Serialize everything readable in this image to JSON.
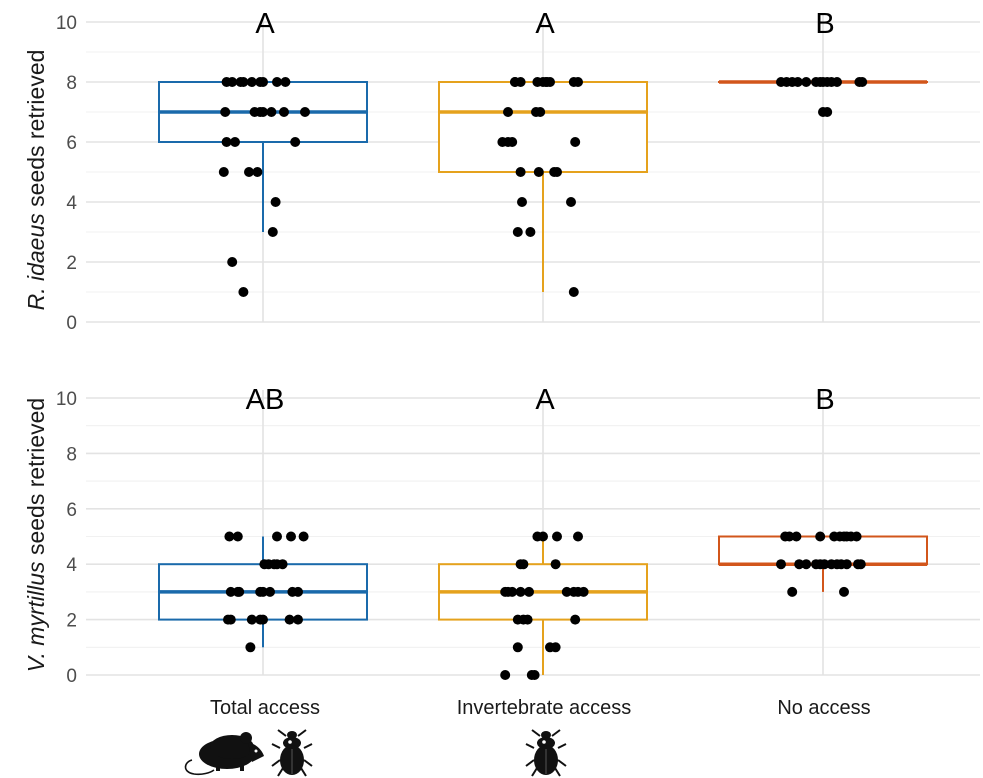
{
  "chart_data": [
    {
      "type": "box",
      "ylabel_italic": "R. idaeus",
      "ylabel_rest": " seeds retrieved",
      "ylim": [
        0,
        10
      ],
      "yticks": [
        0,
        2,
        4,
        6,
        8,
        10
      ],
      "grid": true,
      "categories": [
        "Total access",
        "Invertebrate access",
        "No access"
      ],
      "letters": [
        "A",
        "A",
        "B"
      ],
      "boxes": [
        {
          "min": 3,
          "q1": 6,
          "median": 7,
          "q3": 8,
          "max": 8,
          "color": "#1a6aab"
        },
        {
          "min": 1,
          "q1": 5,
          "median": 7,
          "q3": 8,
          "max": 8,
          "color": "#e5a21d"
        },
        {
          "min": 8,
          "q1": 8,
          "median": 8,
          "q3": 8,
          "max": 8,
          "color": "#d2561b"
        }
      ],
      "points": [
        [
          {
            "j": -0.26,
            "y": 8
          },
          {
            "j": -0.22,
            "y": 8
          },
          {
            "j": -0.16,
            "y": 8
          },
          {
            "j": -0.14,
            "y": 8
          },
          {
            "j": -0.08,
            "y": 8
          },
          {
            "j": -0.02,
            "y": 8
          },
          {
            "j": 0.0,
            "y": 8
          },
          {
            "j": 0.1,
            "y": 8
          },
          {
            "j": 0.16,
            "y": 8
          },
          {
            "j": -0.27,
            "y": 7
          },
          {
            "j": -0.06,
            "y": 7
          },
          {
            "j": -0.02,
            "y": 7
          },
          {
            "j": 0.0,
            "y": 7
          },
          {
            "j": 0.06,
            "y": 7
          },
          {
            "j": 0.15,
            "y": 7
          },
          {
            "j": 0.3,
            "y": 7
          },
          {
            "j": -0.26,
            "y": 6
          },
          {
            "j": -0.2,
            "y": 6
          },
          {
            "j": 0.23,
            "y": 6
          },
          {
            "j": -0.28,
            "y": 5
          },
          {
            "j": -0.1,
            "y": 5
          },
          {
            "j": -0.04,
            "y": 5
          },
          {
            "j": 0.09,
            "y": 4
          },
          {
            "j": 0.07,
            "y": 3
          },
          {
            "j": -0.22,
            "y": 2
          },
          {
            "j": -0.14,
            "y": 1
          }
        ],
        [
          {
            "j": -0.2,
            "y": 8
          },
          {
            "j": -0.2,
            "y": 8
          },
          {
            "j": -0.16,
            "y": 8
          },
          {
            "j": -0.04,
            "y": 8
          },
          {
            "j": 0.0,
            "y": 8
          },
          {
            "j": 0.02,
            "y": 8
          },
          {
            "j": 0.03,
            "y": 8
          },
          {
            "j": 0.05,
            "y": 8
          },
          {
            "j": 0.22,
            "y": 8
          },
          {
            "j": 0.25,
            "y": 8
          },
          {
            "j": -0.25,
            "y": 7
          },
          {
            "j": -0.05,
            "y": 7
          },
          {
            "j": -0.02,
            "y": 7
          },
          {
            "j": -0.29,
            "y": 6
          },
          {
            "j": -0.25,
            "y": 6
          },
          {
            "j": -0.22,
            "y": 6
          },
          {
            "j": 0.23,
            "y": 6
          },
          {
            "j": -0.16,
            "y": 5
          },
          {
            "j": -0.03,
            "y": 5
          },
          {
            "j": 0.08,
            "y": 5
          },
          {
            "j": 0.1,
            "y": 5
          },
          {
            "j": -0.15,
            "y": 4
          },
          {
            "j": 0.2,
            "y": 4
          },
          {
            "j": -0.18,
            "y": 3
          },
          {
            "j": -0.09,
            "y": 3
          },
          {
            "j": 0.22,
            "y": 1
          }
        ],
        [
          {
            "j": -0.3,
            "y": 8
          },
          {
            "j": -0.26,
            "y": 8
          },
          {
            "j": -0.22,
            "y": 8
          },
          {
            "j": -0.18,
            "y": 8
          },
          {
            "j": -0.12,
            "y": 8
          },
          {
            "j": -0.05,
            "y": 8
          },
          {
            "j": -0.02,
            "y": 8
          },
          {
            "j": 0.0,
            "y": 8
          },
          {
            "j": 0.03,
            "y": 8
          },
          {
            "j": 0.06,
            "y": 8
          },
          {
            "j": 0.1,
            "y": 8
          },
          {
            "j": 0.26,
            "y": 8
          },
          {
            "j": 0.28,
            "y": 8
          },
          {
            "j": 0.0,
            "y": 7
          },
          {
            "j": 0.03,
            "y": 7
          }
        ]
      ]
    },
    {
      "type": "box",
      "ylabel_italic": "V. myrtillus",
      "ylabel_rest": " seeds retrieved",
      "ylim": [
        0,
        10
      ],
      "yticks": [
        0,
        2,
        4,
        6,
        8,
        10
      ],
      "grid": true,
      "categories": [
        "Total access",
        "Invertebrate access",
        "No access"
      ],
      "letters": [
        "AB",
        "A",
        "B"
      ],
      "boxes": [
        {
          "min": 1,
          "q1": 2,
          "median": 3,
          "q3": 4,
          "max": 5,
          "color": "#1a6aab"
        },
        {
          "min": 0,
          "q1": 2,
          "median": 3,
          "q3": 4,
          "max": 5,
          "color": "#e5a21d"
        },
        {
          "min": 3,
          "q1": 4,
          "median": 4,
          "q3": 5,
          "max": 5,
          "color": "#d2561b"
        }
      ],
      "points": [
        [
          {
            "j": -0.24,
            "y": 5
          },
          {
            "j": -0.18,
            "y": 5
          },
          {
            "j": 0.1,
            "y": 5
          },
          {
            "j": 0.2,
            "y": 5
          },
          {
            "j": 0.29,
            "y": 5
          },
          {
            "j": 0.01,
            "y": 4
          },
          {
            "j": 0.04,
            "y": 4
          },
          {
            "j": 0.08,
            "y": 4
          },
          {
            "j": 0.1,
            "y": 4
          },
          {
            "j": 0.14,
            "y": 4
          },
          {
            "j": -0.23,
            "y": 3
          },
          {
            "j": -0.18,
            "y": 3
          },
          {
            "j": -0.17,
            "y": 3
          },
          {
            "j": -0.02,
            "y": 3
          },
          {
            "j": 0.0,
            "y": 3
          },
          {
            "j": 0.05,
            "y": 3
          },
          {
            "j": 0.21,
            "y": 3
          },
          {
            "j": 0.25,
            "y": 3
          },
          {
            "j": -0.25,
            "y": 2
          },
          {
            "j": -0.23,
            "y": 2
          },
          {
            "j": -0.08,
            "y": 2
          },
          {
            "j": -0.02,
            "y": 2
          },
          {
            "j": 0.0,
            "y": 2
          },
          {
            "j": 0.19,
            "y": 2
          },
          {
            "j": 0.25,
            "y": 2
          },
          {
            "j": -0.09,
            "y": 1
          }
        ],
        [
          {
            "j": -0.04,
            "y": 5
          },
          {
            "j": 0.0,
            "y": 5
          },
          {
            "j": 0.1,
            "y": 5
          },
          {
            "j": 0.25,
            "y": 5
          },
          {
            "j": -0.16,
            "y": 4
          },
          {
            "j": -0.14,
            "y": 4
          },
          {
            "j": 0.09,
            "y": 4
          },
          {
            "j": -0.27,
            "y": 3
          },
          {
            "j": -0.25,
            "y": 3
          },
          {
            "j": -0.22,
            "y": 3
          },
          {
            "j": -0.16,
            "y": 3
          },
          {
            "j": -0.1,
            "y": 3
          },
          {
            "j": 0.17,
            "y": 3
          },
          {
            "j": 0.22,
            "y": 3
          },
          {
            "j": 0.25,
            "y": 3
          },
          {
            "j": 0.29,
            "y": 3
          },
          {
            "j": -0.18,
            "y": 2
          },
          {
            "j": -0.14,
            "y": 2
          },
          {
            "j": -0.11,
            "y": 2
          },
          {
            "j": 0.23,
            "y": 2
          },
          {
            "j": -0.18,
            "y": 1
          },
          {
            "j": 0.05,
            "y": 1
          },
          {
            "j": 0.09,
            "y": 1
          },
          {
            "j": -0.27,
            "y": 0
          },
          {
            "j": -0.08,
            "y": 0
          },
          {
            "j": -0.06,
            "y": 0
          }
        ],
        [
          {
            "j": -0.27,
            "y": 5
          },
          {
            "j": -0.24,
            "y": 5
          },
          {
            "j": -0.19,
            "y": 5
          },
          {
            "j": -0.02,
            "y": 5
          },
          {
            "j": 0.08,
            "y": 5
          },
          {
            "j": 0.12,
            "y": 5
          },
          {
            "j": 0.15,
            "y": 5
          },
          {
            "j": 0.17,
            "y": 5
          },
          {
            "j": 0.2,
            "y": 5
          },
          {
            "j": 0.24,
            "y": 5
          },
          {
            "j": -0.3,
            "y": 4
          },
          {
            "j": -0.17,
            "y": 4
          },
          {
            "j": -0.12,
            "y": 4
          },
          {
            "j": -0.05,
            "y": 4
          },
          {
            "j": -0.02,
            "y": 4
          },
          {
            "j": 0.01,
            "y": 4
          },
          {
            "j": 0.06,
            "y": 4
          },
          {
            "j": 0.1,
            "y": 4
          },
          {
            "j": 0.13,
            "y": 4
          },
          {
            "j": 0.17,
            "y": 4
          },
          {
            "j": 0.25,
            "y": 4
          },
          {
            "j": 0.27,
            "y": 4
          },
          {
            "j": -0.22,
            "y": 3
          },
          {
            "j": 0.15,
            "y": 3
          }
        ]
      ]
    }
  ],
  "icons": {
    "total_access": [
      "mouse-icon",
      "beetle-icon"
    ],
    "invertebrate_access": [
      "beetle-icon"
    ]
  }
}
